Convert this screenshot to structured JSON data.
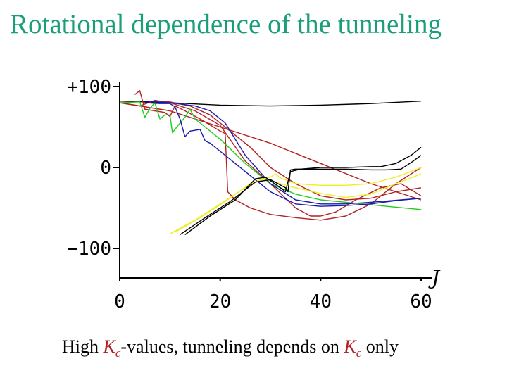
{
  "title": "Rotational dependence of the tunneling",
  "caption": {
    "text1": "High ",
    "k": "K",
    "sub": "c",
    "text2": "-values, tunneling depends on ",
    "text3": " only"
  },
  "chart_data": {
    "type": "line",
    "title": "",
    "xlabel": "J",
    "ylabel": "",
    "xlim": [
      0,
      60
    ],
    "ylim": [
      -140,
      110
    ],
    "x_ticks": [
      0,
      20,
      40,
      60
    ],
    "x_tick_labels": [
      "0",
      "20",
      "40",
      "60"
    ],
    "y_ticks": [
      100,
      0,
      -100
    ],
    "y_tick_labels": [
      "+100",
      "0",
      "−100"
    ],
    "grid": false,
    "series": [
      {
        "color": "#000000",
        "points": [
          [
            0,
            82
          ],
          [
            10,
            80
          ],
          [
            20,
            77
          ],
          [
            30,
            76
          ],
          [
            40,
            77
          ],
          [
            50,
            79
          ],
          [
            60,
            82
          ]
        ]
      },
      {
        "color": "#b22222",
        "points": [
          [
            0,
            80
          ],
          [
            10,
            70
          ],
          [
            20,
            50
          ],
          [
            30,
            30
          ],
          [
            40,
            5
          ],
          [
            50,
            -20
          ],
          [
            60,
            -40
          ]
        ]
      },
      {
        "color": "#b22222",
        "points": [
          [
            3,
            90
          ],
          [
            4,
            95
          ],
          [
            5,
            72
          ],
          [
            7,
            70
          ],
          [
            9,
            68
          ],
          [
            10,
            63
          ],
          [
            11,
            76
          ],
          [
            13,
            70
          ],
          [
            16,
            60
          ],
          [
            20,
            45
          ],
          [
            21,
            42
          ],
          [
            21.5,
            -30
          ],
          [
            23,
            -40
          ],
          [
            26,
            -50
          ],
          [
            30,
            -58
          ],
          [
            35,
            -62
          ],
          [
            40,
            -65
          ],
          [
            45,
            -60
          ],
          [
            50,
            -45
          ],
          [
            55,
            -20
          ],
          [
            60,
            0
          ]
        ]
      },
      {
        "color": "#b22222",
        "points": [
          [
            0,
            80
          ],
          [
            4,
            76
          ],
          [
            7,
            83
          ],
          [
            10,
            80
          ],
          [
            15,
            70
          ],
          [
            20,
            52
          ],
          [
            25,
            8
          ],
          [
            30,
            -20
          ],
          [
            35,
            -50
          ],
          [
            38,
            -60
          ],
          [
            40,
            -60
          ],
          [
            43,
            -55
          ],
          [
            47,
            -40
          ],
          [
            52,
            -25
          ],
          [
            56,
            -20
          ],
          [
            60,
            -35
          ]
        ]
      },
      {
        "color": "#22cc22",
        "points": [
          [
            0,
            80
          ],
          [
            4,
            81
          ],
          [
            5,
            62
          ],
          [
            6,
            73
          ],
          [
            7,
            80
          ],
          [
            8,
            60
          ],
          [
            9,
            65
          ],
          [
            10,
            65
          ],
          [
            10.5,
            43
          ],
          [
            12,
            55
          ],
          [
            13,
            62
          ],
          [
            14,
            72
          ],
          [
            15,
            60
          ],
          [
            20,
            35
          ],
          [
            25,
            5
          ],
          [
            30,
            -20
          ],
          [
            35,
            -33
          ],
          [
            40,
            -40
          ],
          [
            45,
            -43
          ],
          [
            50,
            -46
          ],
          [
            55,
            -49
          ],
          [
            60,
            -52
          ]
        ]
      },
      {
        "color": "#1a1aaa",
        "points": [
          [
            5,
            80
          ],
          [
            8,
            79
          ],
          [
            10,
            79
          ],
          [
            11,
            75
          ],
          [
            12,
            60
          ],
          [
            13,
            38
          ],
          [
            14,
            45
          ],
          [
            16,
            47
          ],
          [
            17,
            33
          ],
          [
            18,
            30
          ],
          [
            20,
            20
          ],
          [
            25,
            -5
          ],
          [
            30,
            -30
          ],
          [
            35,
            -45
          ],
          [
            40,
            -48
          ],
          [
            45,
            -47
          ],
          [
            50,
            -45
          ],
          [
            55,
            -41
          ],
          [
            60,
            -38
          ]
        ]
      },
      {
        "color": "#b22222",
        "points": [
          [
            8,
            82
          ],
          [
            10,
            81
          ],
          [
            14,
            76
          ],
          [
            18,
            65
          ],
          [
            22,
            45
          ],
          [
            26,
            25
          ],
          [
            30,
            0
          ],
          [
            35,
            -20
          ],
          [
            40,
            -35
          ],
          [
            45,
            -40
          ],
          [
            50,
            -38
          ],
          [
            55,
            -30
          ],
          [
            60,
            -25
          ]
        ]
      },
      {
        "color": "#1a1aaa",
        "points": [
          [
            5,
            82
          ],
          [
            10,
            80
          ],
          [
            15,
            76
          ],
          [
            18,
            70
          ],
          [
            21,
            55
          ],
          [
            25,
            15
          ],
          [
            30,
            -20
          ],
          [
            35,
            -40
          ],
          [
            40,
            -45
          ],
          [
            45,
            -45
          ],
          [
            50,
            -43
          ],
          [
            60,
            -38
          ]
        ]
      },
      {
        "color": "#eeee22",
        "points": [
          [
            10,
            -82
          ],
          [
            15,
            -65
          ],
          [
            20,
            -45
          ],
          [
            25,
            -25
          ],
          [
            28,
            -15
          ],
          [
            30,
            -12
          ],
          [
            31,
            -8
          ],
          [
            32,
            -13
          ],
          [
            35,
            -20
          ],
          [
            40,
            -22
          ],
          [
            45,
            -22
          ],
          [
            50,
            -20
          ],
          [
            55,
            -12
          ],
          [
            60,
            0
          ]
        ]
      },
      {
        "color": "#eeee22",
        "points": [
          [
            11,
            -80
          ],
          [
            16,
            -62
          ],
          [
            21,
            -42
          ],
          [
            26,
            -20
          ],
          [
            29,
            -14
          ],
          [
            32,
            -20
          ],
          [
            35,
            -25
          ],
          [
            40,
            -32
          ],
          [
            45,
            -37
          ],
          [
            50,
            -33
          ],
          [
            55,
            -20
          ],
          [
            60,
            -8
          ]
        ]
      },
      {
        "color": "#000000",
        "points": [
          [
            12,
            -83
          ],
          [
            17,
            -62
          ],
          [
            22,
            -42
          ],
          [
            27,
            -18
          ],
          [
            30,
            -15
          ],
          [
            33,
            -25
          ],
          [
            33.5,
            -30
          ],
          [
            34,
            -3
          ],
          [
            35,
            -2
          ],
          [
            40,
            -2
          ],
          [
            45,
            -2
          ],
          [
            50,
            -3
          ],
          [
            53,
            -3
          ],
          [
            56,
            -2
          ],
          [
            58,
            6
          ],
          [
            60,
            15
          ]
        ]
      },
      {
        "color": "#000000",
        "points": [
          [
            13,
            -83
          ],
          [
            18,
            -60
          ],
          [
            23,
            -40
          ],
          [
            27,
            -14
          ],
          [
            29,
            -12
          ],
          [
            32,
            -25
          ],
          [
            33,
            -30
          ],
          [
            34,
            -5
          ],
          [
            36,
            -2
          ],
          [
            40,
            0
          ],
          [
            45,
            0
          ],
          [
            50,
            1
          ],
          [
            52,
            1
          ],
          [
            55,
            5
          ],
          [
            58,
            15
          ],
          [
            60,
            25
          ]
        ]
      }
    ]
  }
}
